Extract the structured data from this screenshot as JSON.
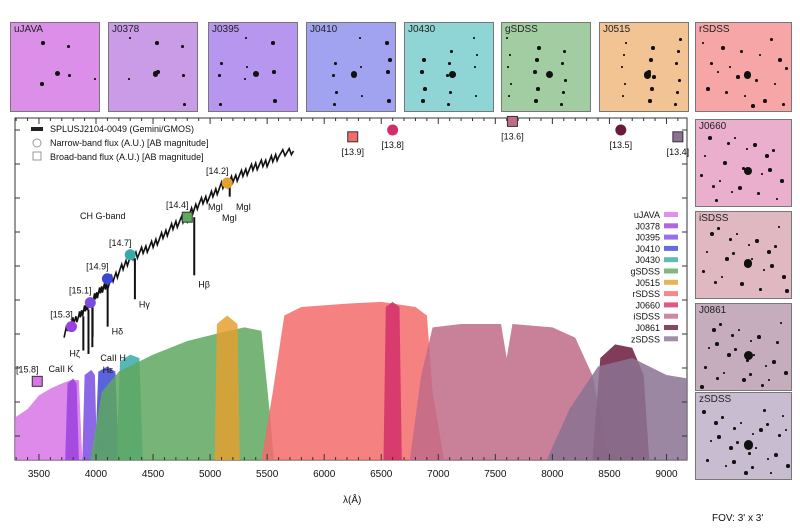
{
  "chart_data": {
    "type": "line",
    "xlabel": "λ(Å)",
    "ylabel": "",
    "xlim": [
      3290,
      9180
    ],
    "ylim": [
      0,
      1
    ],
    "xticks": [
      3500,
      4000,
      4500,
      5000,
      5500,
      6000,
      6500,
      7000,
      7500,
      8000,
      8500,
      9000
    ],
    "legend": {
      "placement": "top-left",
      "entries": [
        "SPLUSJ2104-0049 (Gemini/GMOS)",
        "Narrow-band flux (A.U.) [AB magnitude]",
        "Broad-band flux (A.U.) [AB magnitude]"
      ]
    },
    "spectrum": {
      "name": "SPLUSJ2104-0049 (Gemini/GMOS)",
      "x": [
        3720,
        3780,
        3850,
        3900,
        3950,
        4000,
        4050,
        4100,
        4200,
        4300,
        4400,
        4500,
        4600,
        4700,
        4800,
        4900,
        5000,
        5100,
        5200,
        5300,
        5400,
        5500,
        5600,
        5750
      ],
      "y": [
        0.37,
        0.4,
        0.42,
        0.44,
        0.46,
        0.48,
        0.5,
        0.51,
        0.55,
        0.59,
        0.61,
        0.63,
        0.66,
        0.69,
        0.71,
        0.75,
        0.77,
        0.8,
        0.82,
        0.84,
        0.86,
        0.87,
        0.89,
        0.91
      ]
    },
    "absorption_lines": [
      {
        "label": "Hζ",
        "wavelength": 3889,
        "depth": 0.1
      },
      {
        "label": "CaII K",
        "wavelength": 3934,
        "depth": 0.13
      },
      {
        "label": "CaII H",
        "wavelength": 3968,
        "depth": 0.13
      },
      {
        "label": "Hε",
        "wavelength": 3970,
        "depth": 0.1
      },
      {
        "label": "Hδ",
        "wavelength": 4102,
        "depth": 0.12
      },
      {
        "label": "Hγ",
        "wavelength": 4341,
        "depth": 0.12
      },
      {
        "label": "Hβ",
        "wavelength": 4861,
        "depth": 0.17
      },
      {
        "label": "MgI",
        "wavelength": 5172,
        "depth": 0.03
      }
    ],
    "annotations": [
      "CH G-band",
      "MgI",
      "MgI",
      "MgI"
    ],
    "photometry": [
      {
        "filter": "uJAVA",
        "type": "broad",
        "wavelength": 3485,
        "flux": 0.23,
        "mag": "[15.8]"
      },
      {
        "filter": "J0378",
        "type": "narrow",
        "wavelength": 3785,
        "flux": 0.39,
        "mag": "[15.3]"
      },
      {
        "filter": "J0395",
        "type": "narrow",
        "wavelength": 3950,
        "flux": 0.46,
        "mag": "[15.1]"
      },
      {
        "filter": "J0410",
        "type": "narrow",
        "wavelength": 4100,
        "flux": 0.53,
        "mag": "[14.9]"
      },
      {
        "filter": "J0430",
        "type": "narrow",
        "wavelength": 4300,
        "flux": 0.6,
        "mag": "[14.7]"
      },
      {
        "filter": "gSDSS",
        "type": "broad",
        "wavelength": 4800,
        "flux": 0.71,
        "mag": "[14.4]"
      },
      {
        "filter": "J0515",
        "type": "narrow",
        "wavelength": 5150,
        "flux": 0.81,
        "mag": "[14.2]"
      },
      {
        "filter": "rSDSS",
        "type": "broad",
        "wavelength": 6250,
        "flux": 0.945,
        "mag": "[13.9]"
      },
      {
        "filter": "J0660",
        "type": "narrow",
        "wavelength": 6600,
        "flux": 0.965,
        "mag": "[13.8]"
      },
      {
        "filter": "iSDSS",
        "type": "broad",
        "wavelength": 7650,
        "flux": 0.99,
        "mag": "[13.6]"
      },
      {
        "filter": "J0861",
        "type": "narrow",
        "wavelength": 8600,
        "flux": 0.965,
        "mag": "[13.5]"
      },
      {
        "filter": "zSDSS",
        "type": "broad",
        "wavelength": 9100,
        "flux": 0.945,
        "mag": "[13.4]"
      }
    ],
    "filters": [
      {
        "name": "uJAVA",
        "color": "#d776e8",
        "curve": [
          [
            3290,
            0
          ],
          [
            3290,
            0.25
          ],
          [
            3400,
            0.3
          ],
          [
            3500,
            0.38
          ],
          [
            3600,
            0.42
          ],
          [
            3700,
            0.45
          ],
          [
            3780,
            0.47
          ],
          [
            3850,
            0.47
          ],
          [
            3880,
            0
          ]
        ]
      },
      {
        "name": "J0378",
        "color": "#9b3fe0",
        "curve": [
          [
            3730,
            0
          ],
          [
            3750,
            0.45
          ],
          [
            3800,
            0.48
          ],
          [
            3830,
            0.45
          ],
          [
            3850,
            0
          ]
        ]
      },
      {
        "name": "J0395",
        "color": "#7a4ce2",
        "curve": [
          [
            3880,
            0
          ],
          [
            3900,
            0.5
          ],
          [
            3960,
            0.53
          ],
          [
            3990,
            0.5
          ],
          [
            4010,
            0
          ]
        ]
      },
      {
        "name": "J0410",
        "color": "#3d47d6",
        "curve": [
          [
            3990,
            0
          ],
          [
            4020,
            0.52
          ],
          [
            4100,
            0.55
          ],
          [
            4170,
            0.52
          ],
          [
            4200,
            0
          ]
        ]
      },
      {
        "name": "J0430",
        "color": "#3aa9a9",
        "curve": [
          [
            4180,
            0
          ],
          [
            4210,
            0.58
          ],
          [
            4300,
            0.62
          ],
          [
            4380,
            0.6
          ],
          [
            4410,
            0
          ]
        ]
      },
      {
        "name": "gSDSS",
        "color": "#5ea85f",
        "curve": [
          [
            3950,
            0
          ],
          [
            4050,
            0.4
          ],
          [
            4200,
            0.52
          ],
          [
            4500,
            0.62
          ],
          [
            4800,
            0.7
          ],
          [
            5100,
            0.75
          ],
          [
            5300,
            0.78
          ],
          [
            5450,
            0.76
          ],
          [
            5520,
            0.3
          ],
          [
            5560,
            0
          ]
        ]
      },
      {
        "name": "J0515",
        "color": "#e4a030",
        "curve": [
          [
            5040,
            0
          ],
          [
            5060,
            0.8
          ],
          [
            5150,
            0.85
          ],
          [
            5240,
            0.8
          ],
          [
            5260,
            0
          ]
        ]
      },
      {
        "name": "rSDSS",
        "color": "#f36b6b",
        "curve": [
          [
            5450,
            0
          ],
          [
            5550,
            0.4
          ],
          [
            5650,
            0.85
          ],
          [
            5800,
            0.9
          ],
          [
            6200,
            0.92
          ],
          [
            6500,
            0.93
          ],
          [
            6800,
            0.9
          ],
          [
            6900,
            0.85
          ],
          [
            6950,
            0.4
          ],
          [
            7050,
            0
          ]
        ]
      },
      {
        "name": "J0660",
        "color": "#d22f6a",
        "curve": [
          [
            6520,
            0
          ],
          [
            6540,
            0.9
          ],
          [
            6600,
            0.93
          ],
          [
            6660,
            0.9
          ],
          [
            6680,
            0
          ]
        ]
      },
      {
        "name": "iSDSS",
        "color": "#c06b88",
        "curve": [
          [
            6750,
            0
          ],
          [
            6850,
            0.5
          ],
          [
            6950,
            0.78
          ],
          [
            7200,
            0.8
          ],
          [
            7550,
            0.8
          ],
          [
            7600,
            0.6
          ],
          [
            7650,
            0.8
          ],
          [
            8000,
            0.78
          ],
          [
            8200,
            0.72
          ],
          [
            8350,
            0.5
          ],
          [
            8500,
            0
          ]
        ]
      },
      {
        "name": "J0861",
        "color": "#6a1a3b",
        "curve": [
          [
            8350,
            0
          ],
          [
            8420,
            0.6
          ],
          [
            8550,
            0.68
          ],
          [
            8700,
            0.66
          ],
          [
            8800,
            0.5
          ],
          [
            8850,
            0
          ]
        ]
      },
      {
        "name": "zSDSS",
        "color": "#8b7292",
        "curve": [
          [
            7950,
            0
          ],
          [
            8150,
            0.3
          ],
          [
            8400,
            0.55
          ],
          [
            8700,
            0.6
          ],
          [
            9000,
            0.5
          ],
          [
            9180,
            0.48
          ],
          [
            9180,
            0
          ]
        ]
      }
    ]
  },
  "thumbnails": [
    {
      "label": "uJAVA",
      "color": "#dc8fe8"
    },
    {
      "label": "J0378",
      "color": "#ca9ce8"
    },
    {
      "label": "J0395",
      "color": "#b696ee"
    },
    {
      "label": "J0410",
      "color": "#a1a2f0"
    },
    {
      "label": "J0430",
      "color": "#8fd5d6"
    },
    {
      "label": "gSDSS",
      "color": "#a2cca2"
    },
    {
      "label": "J0515",
      "color": "#f2c393"
    },
    {
      "label": "rSDSS",
      "color": "#f6a6a6"
    },
    {
      "label": "J0660",
      "color": "#e9afcc"
    },
    {
      "label": "iSDSS",
      "color": "#e0b8c2"
    },
    {
      "label": "J0861",
      "color": "#c6adbd"
    },
    {
      "label": "zSDSS",
      "color": "#c8bdd0"
    }
  ],
  "fov": "FOV: 3' x 3'"
}
